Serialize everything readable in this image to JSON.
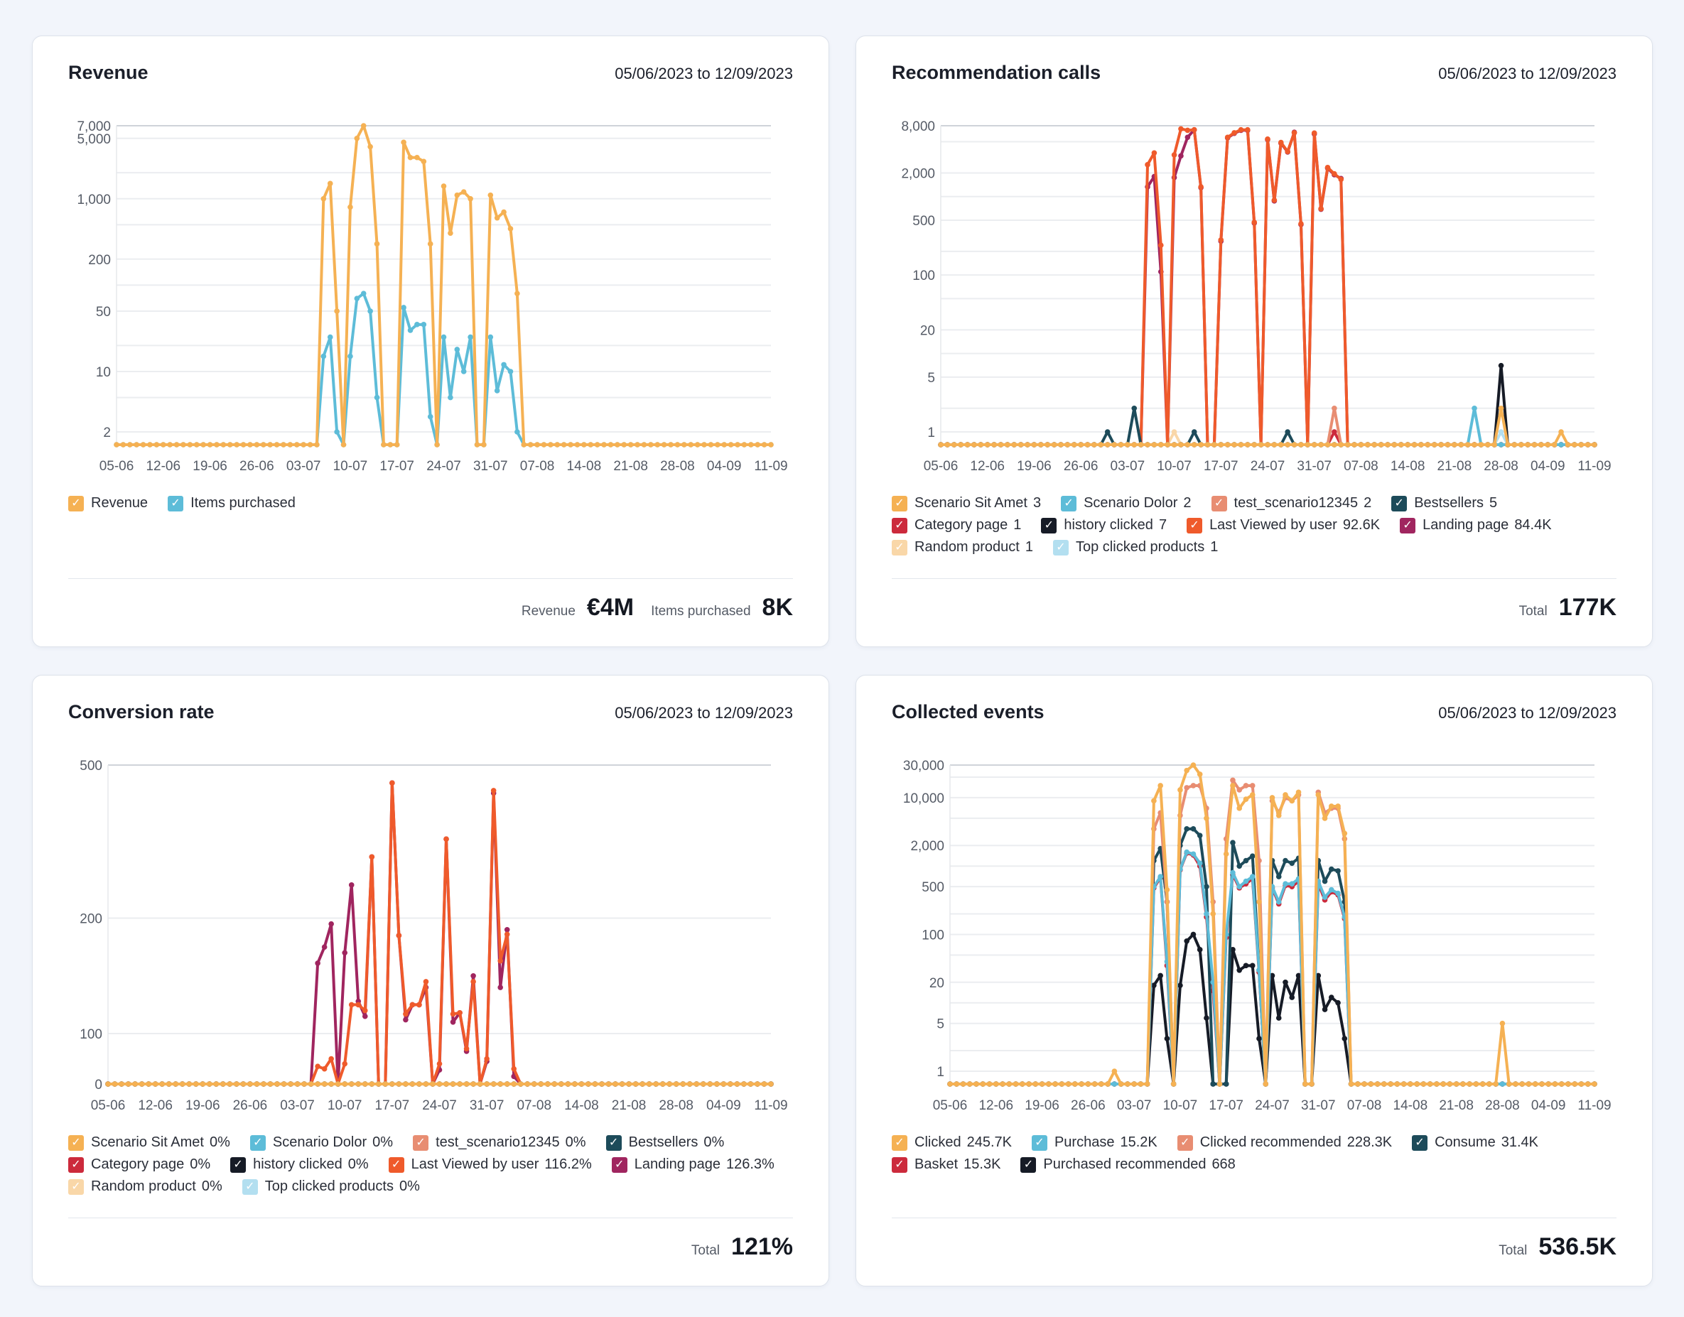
{
  "colors": {
    "orange": "#f5b153",
    "light_blue": "#5dbcd8",
    "salmon": "#e88d72",
    "dark_teal": "#1d4b5a",
    "red": "#cc2a3c",
    "black": "#161b26",
    "orange_red": "#ef5a2b",
    "purple": "#a0255f",
    "beige": "#f9d7a8",
    "pale_blue": "#b3dff0"
  },
  "cards": [
    {
      "title": "Revenue",
      "date_range": "05/06/2023 to 12/09/2023",
      "footer": [
        {
          "label": "Revenue",
          "value": "€4M"
        },
        {
          "label": "Items purchased",
          "value": "8K"
        }
      ]
    },
    {
      "title": "Recommendation calls",
      "date_range": "05/06/2023 to 12/09/2023",
      "footer": [
        {
          "label": "Total",
          "value": "177K"
        }
      ]
    },
    {
      "title": "Conversion rate",
      "date_range": "05/06/2023 to 12/09/2023",
      "footer": [
        {
          "label": "Total",
          "value": "121%"
        }
      ]
    },
    {
      "title": "Collected events",
      "date_range": "05/06/2023 to 12/09/2023",
      "footer": [
        {
          "label": "Total",
          "value": "536.5K"
        }
      ]
    }
  ],
  "chart_data": [
    {
      "type": "line",
      "title": "Revenue",
      "y_scale": "log",
      "grid": true,
      "legend": "bottom-left",
      "x_range": [
        "05-06",
        "11-09"
      ],
      "x_ticks": [
        "05-06",
        "12-06",
        "19-06",
        "26-06",
        "03-07",
        "10-07",
        "17-07",
        "24-07",
        "31-07",
        "07-08",
        "14-08",
        "21-08",
        "28-08",
        "04-09",
        "11-09"
      ],
      "y_ticks": [
        {
          "v": 2,
          "label": "2"
        },
        {
          "v": 10,
          "label": "10"
        },
        {
          "v": 50,
          "label": "50"
        },
        {
          "v": 200,
          "label": "200"
        },
        {
          "v": 1000,
          "label": "1,000"
        },
        {
          "v": 5000,
          "label": "5,000"
        },
        {
          "v": 7000,
          "label": "7,000"
        }
      ],
      "series": [
        {
          "name": "Revenue",
          "total": "",
          "color": "#f5b153",
          "values": {
            "06-07": 1000,
            "07-07": 1500,
            "08-07": 50,
            "10-07": 800,
            "11-07": 5000,
            "12-07": 7000,
            "13-07": 4000,
            "14-07": 300,
            "18-07": 4500,
            "19-07": 3000,
            "20-07": 3000,
            "21-07": 2700,
            "22-07": 300,
            "24-07": 1400,
            "25-07": 400,
            "26-07": 1100,
            "27-07": 1200,
            "28-07": 1000,
            "31-07": 1100,
            "01-08": 600,
            "02-08": 700,
            "03-08": 450,
            "04-08": 80
          }
        },
        {
          "name": "Items purchased",
          "total": "",
          "color": "#5dbcd8",
          "values": {
            "06-07": 15,
            "07-07": 25,
            "08-07": 2,
            "10-07": 15,
            "11-07": 70,
            "12-07": 80,
            "13-07": 50,
            "14-07": 5,
            "18-07": 55,
            "19-07": 30,
            "20-07": 35,
            "21-07": 35,
            "22-07": 3,
            "24-07": 25,
            "25-07": 5,
            "26-07": 18,
            "27-07": 10,
            "28-07": 25,
            "31-07": 25,
            "01-08": 6,
            "02-08": 12,
            "03-08": 10,
            "04-08": 2
          }
        }
      ]
    },
    {
      "type": "line",
      "title": "Recommendation calls",
      "y_scale": "log",
      "grid": true,
      "legend": "bottom-left",
      "x_range": [
        "05-06",
        "11-09"
      ],
      "x_ticks": [
        "05-06",
        "12-06",
        "19-06",
        "26-06",
        "03-07",
        "10-07",
        "17-07",
        "24-07",
        "31-07",
        "07-08",
        "14-08",
        "21-08",
        "28-08",
        "04-09",
        "11-09"
      ],
      "y_ticks": [
        {
          "v": 1,
          "label": "1"
        },
        {
          "v": 5,
          "label": "5"
        },
        {
          "v": 20,
          "label": "20"
        },
        {
          "v": 100,
          "label": "100"
        },
        {
          "v": 500,
          "label": "500"
        },
        {
          "v": 2000,
          "label": "2,000"
        },
        {
          "v": 8000,
          "label": "8,000"
        }
      ],
      "series": [
        {
          "name": "Scenario Sit Amet",
          "total": "3",
          "color": "#f5b153",
          "values": {
            "28-08": 2,
            "06-09": 1
          }
        },
        {
          "name": "Scenario Dolor",
          "total": "2",
          "color": "#5dbcd8",
          "values": {
            "24-08": 2
          }
        },
        {
          "name": "test_scenario12345",
          "total": "2",
          "color": "#e88d72",
          "values": {
            "03-08": 2
          }
        },
        {
          "name": "Bestsellers",
          "total": "5",
          "color": "#1d4b5a",
          "values": {
            "30-06": 1,
            "04-07": 2,
            "13-07": 1,
            "27-07": 1
          }
        },
        {
          "name": "Category page",
          "total": "1",
          "color": "#cc2a3c",
          "values": {
            "03-08": 1
          }
        },
        {
          "name": "history clicked",
          "total": "7",
          "color": "#161b26",
          "values": {
            "28-08": 7
          }
        },
        {
          "name": "Last Viewed by user",
          "total": "92.6K",
          "color": "#ef5a2b",
          "values": {
            "06-07": 2550,
            "07-07": 3600,
            "08-07": 240,
            "10-07": 3400,
            "11-07": 7300,
            "12-07": 7000,
            "13-07": 7100,
            "14-07": 1330,
            "17-07": 280,
            "18-07": 5700,
            "19-07": 6500,
            "20-07": 7100,
            "21-07": 7100,
            "22-07": 470,
            "24-07": 5400,
            "25-07": 900,
            "26-07": 4900,
            "27-07": 3750,
            "28-07": 6500,
            "29-07": 450,
            "31-07": 6450,
            "01-08": 700,
            "02-08": 2350,
            "03-08": 1950,
            "04-08": 1660
          }
        },
        {
          "name": "Landing page",
          "total": "84.4K",
          "color": "#a0255f",
          "values": {
            "06-07": 1330,
            "07-07": 1800,
            "08-07": 110,
            "10-07": 1750,
            "11-07": 3300,
            "12-07": 5700,
            "13-07": 7100,
            "14-07": 1300,
            "17-07": 270,
            "18-07": 5600,
            "19-07": 6400,
            "20-07": 7000,
            "21-07": 7000,
            "22-07": 460,
            "24-07": 5300,
            "25-07": 880,
            "26-07": 4800,
            "27-07": 3700,
            "28-07": 6600,
            "29-07": 440,
            "31-07": 6300,
            "01-08": 690,
            "02-08": 2300,
            "03-08": 1900,
            "04-08": 1700
          }
        },
        {
          "name": "Random product",
          "total": "1",
          "color": "#f9d7a8",
          "values": {
            "10-07": 1
          }
        },
        {
          "name": "Top clicked products",
          "total": "1",
          "color": "#b3dff0",
          "values": {
            "28-08": 1
          }
        }
      ]
    },
    {
      "type": "line",
      "title": "Conversion rate",
      "y_scale": "nonlinear",
      "grid": true,
      "legend": "bottom-left",
      "x_range": [
        "05-06",
        "11-09"
      ],
      "x_ticks": [
        "05-06",
        "12-06",
        "19-06",
        "26-06",
        "03-07",
        "10-07",
        "17-07",
        "24-07",
        "31-07",
        "07-08",
        "14-08",
        "21-08",
        "28-08",
        "04-09",
        "11-09"
      ],
      "y_ticks": [
        {
          "v": 0,
          "label": "0"
        },
        {
          "v": 100,
          "label": "100"
        },
        {
          "v": 200,
          "label": "200"
        },
        {
          "v": 500,
          "label": "500"
        }
      ],
      "series": [
        {
          "name": "Scenario Sit Amet",
          "total": "0%",
          "color": "#f5b153",
          "values": {}
        },
        {
          "name": "Scenario Dolor",
          "total": "0%",
          "color": "#5dbcd8",
          "values": {}
        },
        {
          "name": "test_scenario12345",
          "total": "0%",
          "color": "#e88d72",
          "values": {}
        },
        {
          "name": "Bestsellers",
          "total": "0%",
          "color": "#1d4b5a",
          "values": {}
        },
        {
          "name": "Category page",
          "total": "0%",
          "color": "#cc2a3c",
          "values": {}
        },
        {
          "name": "history clicked",
          "total": "0%",
          "color": "#161b26",
          "values": {}
        },
        {
          "name": "Last Viewed by user",
          "total": "116.2%",
          "color": "#ef5a2b",
          "values": {
            "06-07": 35,
            "07-07": 30,
            "08-07": 50,
            "10-07": 40,
            "11-07": 125,
            "12-07": 125,
            "13-07": 120,
            "14-07": 320,
            "17-07": 465,
            "18-07": 185,
            "19-07": 117,
            "20-07": 125,
            "21-07": 125,
            "22-07": 145,
            "24-07": 40,
            "25-07": 355,
            "26-07": 117,
            "27-07": 118,
            "28-07": 70,
            "29-07": 145,
            "31-07": 50,
            "01-08": 450,
            "02-08": 163,
            "03-08": 186,
            "04-08": 30
          }
        },
        {
          "name": "Landing page",
          "total": "126.3%",
          "color": "#a0255f",
          "values": {
            "06-07": 161,
            "07-07": 175,
            "08-07": 195,
            "10-07": 170,
            "11-07": 265,
            "12-07": 128,
            "13-07": 115,
            "14-07": 320,
            "17-07": 465,
            "18-07": 185,
            "19-07": 112,
            "20-07": 125,
            "21-07": 125,
            "22-07": 140,
            "24-07": 28,
            "25-07": 355,
            "26-07": 110,
            "27-07": 118,
            "28-07": 65,
            "29-07": 150,
            "31-07": 45,
            "01-08": 445,
            "02-08": 140,
            "03-08": 190,
            "04-08": 15
          }
        },
        {
          "name": "Random product",
          "total": "0%",
          "color": "#f9d7a8",
          "values": {}
        },
        {
          "name": "Top clicked products",
          "total": "0%",
          "color": "#b3dff0",
          "values": {}
        }
      ]
    },
    {
      "type": "line",
      "title": "Collected events",
      "y_scale": "log",
      "grid": true,
      "legend": "bottom-left",
      "x_range": [
        "05-06",
        "11-09"
      ],
      "x_ticks": [
        "05-06",
        "12-06",
        "19-06",
        "26-06",
        "03-07",
        "10-07",
        "17-07",
        "24-07",
        "31-07",
        "07-08",
        "14-08",
        "21-08",
        "28-08",
        "04-09",
        "11-09"
      ],
      "y_ticks": [
        {
          "v": 1,
          "label": "1"
        },
        {
          "v": 5,
          "label": "5"
        },
        {
          "v": 20,
          "label": "20"
        },
        {
          "v": 100,
          "label": "100"
        },
        {
          "v": 500,
          "label": "500"
        },
        {
          "v": 2000,
          "label": "2,000"
        },
        {
          "v": 10000,
          "label": "10,000"
        },
        {
          "v": 30000,
          "label": "30,000"
        }
      ],
      "series": [
        {
          "name": "Clicked",
          "total": "245.7K",
          "color": "#f5b153",
          "values": {
            "30-06": 1,
            "06-07": 9000,
            "07-07": 15000,
            "08-07": 450,
            "10-07": 13000,
            "11-07": 25000,
            "12-07": 30000,
            "13-07": 22000,
            "14-07": 5000,
            "15-07": 200,
            "17-07": 1500,
            "18-07": 15000,
            "19-07": 7000,
            "20-07": 9500,
            "21-07": 11000,
            "22-07": 300,
            "24-07": 10000,
            "25-07": 5500,
            "26-07": 11000,
            "27-07": 9000,
            "28-07": 12000,
            "31-07": 11000,
            "01-08": 5000,
            "02-08": 7500,
            "03-08": 7500,
            "04-08": 3000,
            "28-08": 5
          }
        },
        {
          "name": "Purchase",
          "total": "15.2K",
          "color": "#5dbcd8",
          "values": {
            "06-07": 500,
            "07-07": 700,
            "08-07": 40,
            "10-07": 900,
            "11-07": 1600,
            "12-07": 1500,
            "13-07": 1100,
            "14-07": 200,
            "15-07": 20,
            "17-07": 100,
            "18-07": 800,
            "19-07": 500,
            "20-07": 600,
            "21-07": 700,
            "22-07": 30,
            "24-07": 500,
            "25-07": 300,
            "26-07": 550,
            "27-07": 550,
            "28-07": 650,
            "31-07": 600,
            "01-08": 350,
            "02-08": 450,
            "03-08": 400,
            "04-08": 180
          }
        },
        {
          "name": "Clicked recommended",
          "total": "228.3K",
          "color": "#e88d72",
          "values": {
            "06-07": 3500,
            "07-07": 6000,
            "08-07": 300,
            "10-07": 5500,
            "11-07": 14000,
            "12-07": 15000,
            "13-07": 15000,
            "14-07": 7000,
            "15-07": 300,
            "17-07": 2500,
            "18-07": 18000,
            "19-07": 13000,
            "20-07": 15000,
            "21-07": 15000,
            "22-07": 1200,
            "24-07": 9000,
            "25-07": 6000,
            "26-07": 10000,
            "27-07": 9000,
            "28-07": 11000,
            "31-07": 12000,
            "01-08": 6000,
            "02-08": 7000,
            "03-08": 7000,
            "04-08": 2500
          }
        },
        {
          "name": "Consume",
          "total": "31.4K",
          "color": "#1d4b5a",
          "values": {
            "06-07": 1200,
            "07-07": 1800,
            "08-07": 300,
            "10-07": 2000,
            "11-07": 3500,
            "12-07": 3500,
            "13-07": 2800,
            "14-07": 500,
            "18-07": 2200,
            "19-07": 1000,
            "20-07": 1200,
            "21-07": 1400,
            "22-07": 30,
            "24-07": 1200,
            "25-07": 700,
            "26-07": 1200,
            "27-07": 1100,
            "28-07": 1300,
            "31-07": 1200,
            "01-08": 600,
            "02-08": 900,
            "03-08": 850,
            "04-08": 300
          }
        },
        {
          "name": "Basket",
          "total": "15.3K",
          "color": "#cc2a3c",
          "values": {
            "06-07": 480,
            "07-07": 680,
            "08-07": 35,
            "10-07": 880,
            "11-07": 1550,
            "12-07": 1450,
            "13-07": 1000,
            "14-07": 180,
            "15-07": 15,
            "17-07": 90,
            "18-07": 750,
            "19-07": 480,
            "20-07": 550,
            "21-07": 650,
            "22-07": 28,
            "24-07": 480,
            "25-07": 280,
            "26-07": 520,
            "27-07": 500,
            "28-07": 600,
            "31-07": 550,
            "01-08": 320,
            "02-08": 420,
            "03-08": 380,
            "04-08": 170
          }
        },
        {
          "name": "Purchased recommended",
          "total": "668",
          "color": "#161b26",
          "values": {
            "06-07": 18,
            "07-07": 25,
            "08-07": 3,
            "10-07": 18,
            "11-07": 80,
            "12-07": 100,
            "13-07": 60,
            "14-07": 6,
            "18-07": 60,
            "19-07": 30,
            "20-07": 35,
            "21-07": 35,
            "22-07": 3,
            "24-07": 25,
            "25-07": 6,
            "26-07": 20,
            "27-07": 12,
            "28-07": 25,
            "31-07": 25,
            "01-08": 8,
            "02-08": 12,
            "03-08": 10,
            "04-08": 3
          }
        }
      ]
    }
  ]
}
